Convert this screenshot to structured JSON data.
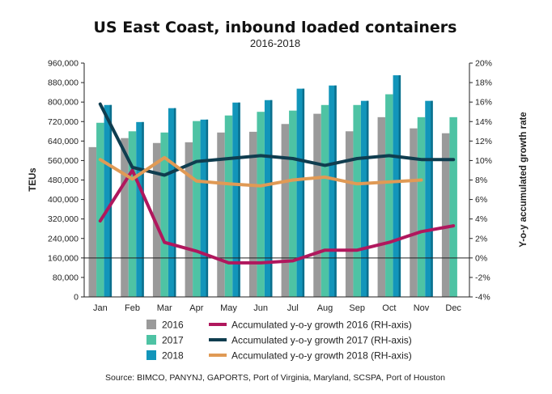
{
  "chart_data": {
    "type": "bar",
    "title": "US East Coast, inbound loaded containers",
    "subtitle": "2016-2018",
    "ylabel": "TEUs",
    "ylabel_right": "Y-o-y accumulated growth rate",
    "ylim": [
      0,
      960000
    ],
    "ylim_right": [
      -4,
      20
    ],
    "y_ticks": [
      "0",
      "80,000",
      "160,000",
      "240,000",
      "320,000",
      "400,000",
      "480,000",
      "560,000",
      "640,000",
      "720,000",
      "800,000",
      "880,000",
      "960,000"
    ],
    "y_ticks_right": [
      "-4%",
      "-2%",
      "0%",
      "2%",
      "4%",
      "6%",
      "8%",
      "10%",
      "12%",
      "14%",
      "16%",
      "18%",
      "20%"
    ],
    "categories": [
      "Jan",
      "Feb",
      "Mar",
      "Apr",
      "May",
      "Jun",
      "Jul",
      "Aug",
      "Sep",
      "Oct",
      "Nov",
      "Dec"
    ],
    "series": [
      {
        "name": "2016",
        "kind": "bar",
        "color": "#9a9a9a",
        "values": [
          615000,
          652000,
          632000,
          635000,
          675000,
          678000,
          710000,
          752000,
          680000,
          738000,
          692000,
          672000
        ]
      },
      {
        "name": "2017",
        "kind": "bar",
        "color": "#4ec3a4",
        "values": [
          715000,
          680000,
          675000,
          722000,
          745000,
          760000,
          765000,
          788000,
          788000,
          832000,
          738000,
          738000
        ]
      },
      {
        "name": "2018",
        "kind": "bar",
        "color": "#1295ba",
        "values": [
          788000,
          718000,
          775000,
          728000,
          798000,
          808000,
          855000,
          868000,
          805000,
          910000,
          805000,
          null
        ]
      },
      {
        "name": "Accumulated y-o-y growth 2016 (RH-axis)",
        "kind": "line",
        "axis": "right",
        "color": "#b0175d",
        "values": [
          3.8,
          9.0,
          1.6,
          0.7,
          -0.5,
          -0.5,
          -0.3,
          0.8,
          0.8,
          1.6,
          2.7,
          3.3
        ]
      },
      {
        "name": "Accumulated y-o-y growth 2017 (RH-axis)",
        "kind": "line",
        "axis": "right",
        "color": "#0f3d4f",
        "values": [
          15.8,
          9.3,
          8.5,
          9.9,
          10.2,
          10.5,
          10.2,
          9.5,
          10.2,
          10.5,
          10.1,
          10.1
        ]
      },
      {
        "name": "Accumulated y-o-y growth 2018 (RH-axis)",
        "kind": "line",
        "axis": "right",
        "color": "#e09a55",
        "values": [
          10.1,
          8.1,
          10.3,
          7.9,
          7.6,
          7.4,
          8.0,
          8.3,
          7.6,
          7.8,
          8.0,
          null
        ]
      }
    ],
    "legend_position": "bottom"
  },
  "source": "Source: BIMCO, PANYNJ, GAPORTS, Port of Virginia, Maryland, SCSPA, Port of Houston"
}
